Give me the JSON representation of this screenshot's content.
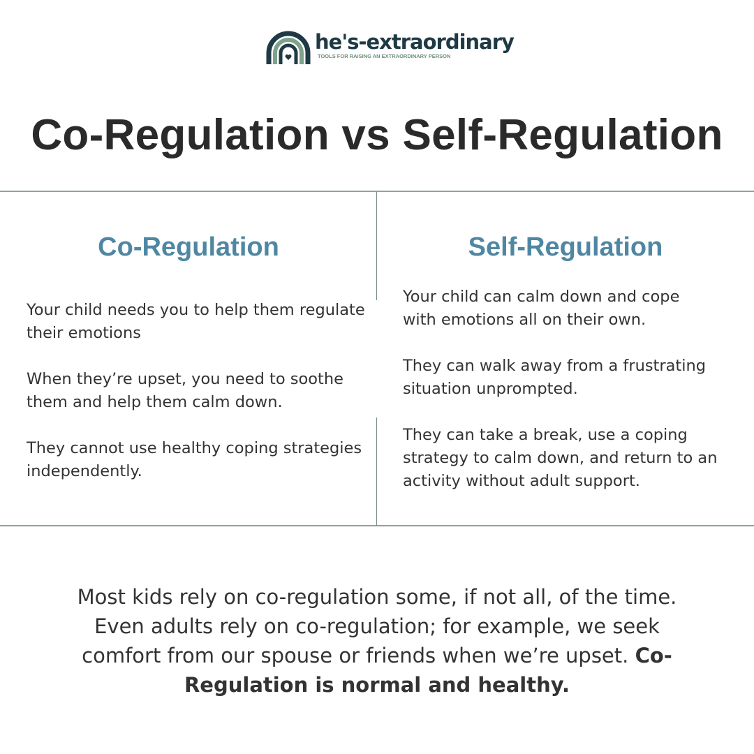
{
  "logo": {
    "name": "he's-extraordinary",
    "tagline": "TOOLS FOR RAISING AN EXTRAORDINARY PERSON",
    "icon": "rainbow-heart-icon"
  },
  "title": "Co-Regulation vs Self-Regulation",
  "colors": {
    "heading": "#4f87a3",
    "divider": "#8fa396",
    "logo_dark": "#1f3a45",
    "logo_green": "#6d8f78"
  },
  "left": {
    "heading": "Co-Regulation",
    "items": [
      "Your child needs you to help them regulate their emotions",
      "When they’re upset, you need to soothe them and help them calm down.",
      "They cannot use healthy coping strategies independently."
    ]
  },
  "right": {
    "heading": "Self-Regulation",
    "items": [
      "Your child can calm down and cope with emotions all on their own.",
      "They can walk away from a frustrating situation unprompted.",
      "They can take a break, use a coping strategy to calm down, and return to an activity without adult support."
    ]
  },
  "footer": {
    "text": "Most kids rely on co-regulation some, if not all, of the time. Even adults rely on co-regulation; for example, we seek comfort from our spouse or friends when we’re upset. ",
    "bold": "Co-Regulation is normal and healthy."
  }
}
